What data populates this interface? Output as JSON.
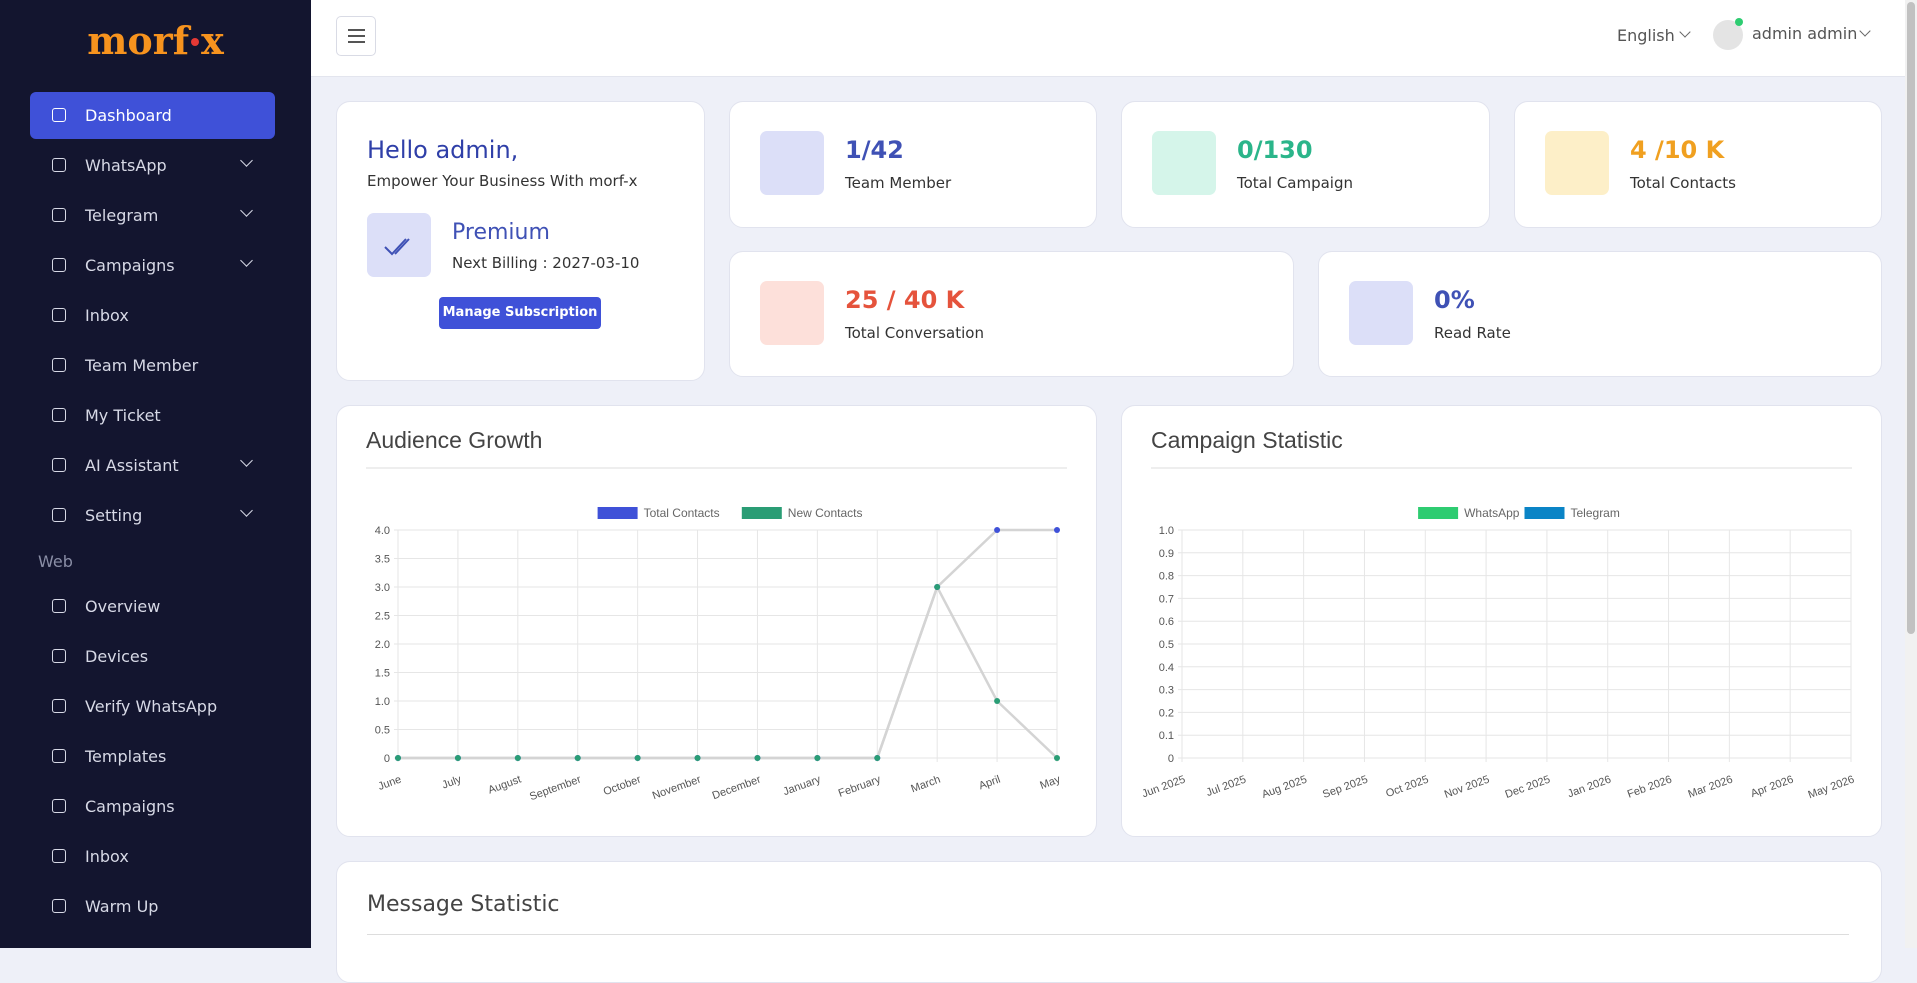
{
  "sidebar": {
    "logo": [
      "morf",
      "x"
    ],
    "menu": [
      {
        "label": "Dashboard",
        "active": true
      },
      {
        "label": "WhatsApp",
        "submenu": true
      },
      {
        "label": "Telegram",
        "submenu": true
      },
      {
        "label": "Campaigns",
        "submenu": true
      },
      {
        "label": "Inbox"
      },
      {
        "label": "Team Member"
      },
      {
        "label": "My Ticket"
      },
      {
        "label": "AI Assistant",
        "submenu": true
      },
      {
        "label": "Setting",
        "submenu": true
      }
    ],
    "web_section": "Web",
    "web_menu": [
      {
        "label": "Overview"
      },
      {
        "label": "Devices"
      },
      {
        "label": "Verify WhatsApp"
      },
      {
        "label": "Templates"
      },
      {
        "label": "Campaigns"
      },
      {
        "label": "Inbox"
      },
      {
        "label": "Warm Up"
      }
    ]
  },
  "header": {
    "language": "English",
    "user": "admin admin"
  },
  "welcome": {
    "greeting": "Hello admin,",
    "tagline": "Empower Your Business With morf-x",
    "plan": "Premium",
    "billing": "Next Billing : 2027-03-10",
    "button": "Manage Subscription"
  },
  "stats": [
    {
      "value": "1/42",
      "label": "Team Member",
      "color": "#3f51b5",
      "bg": "#dcdff8"
    },
    {
      "value": "0/130",
      "label": "Total Campaign",
      "color": "#2bb58a",
      "bg": "#d5f5ea"
    },
    {
      "value": "4 /10 K",
      "label": "Total Contacts",
      "color": "#f0a020",
      "bg": "#fdefc8"
    },
    {
      "value": "25 / 40 K",
      "label": "Total Conversation",
      "color": "#e5533c",
      "bg": "#fde0da"
    },
    {
      "value": "0%",
      "label": "Read Rate",
      "color": "#3f51b5",
      "bg": "#dcdff8"
    }
  ],
  "chart_data": [
    {
      "type": "line",
      "title": "Audience Growth",
      "categories": [
        "June",
        "July",
        "August",
        "September",
        "October",
        "November",
        "December",
        "January",
        "February",
        "March",
        "April",
        "May"
      ],
      "series": [
        {
          "name": "Total Contacts",
          "color": "#3f51d8",
          "values": [
            0,
            0,
            0,
            0,
            0,
            0,
            0,
            0,
            0,
            3,
            4,
            4
          ]
        },
        {
          "name": "New Contacts",
          "color": "#2a9d75",
          "values": [
            0,
            0,
            0,
            0,
            0,
            0,
            0,
            0,
            0,
            3,
            1,
            0
          ]
        }
      ],
      "line_color": "#d4d4d4",
      "ylim": [
        0,
        4
      ],
      "yticks": [
        0,
        0.5,
        {
          "value": 1,
          "label": "1.0"
        },
        1.5,
        {
          "value": 2,
          "label": "2.0"
        },
        2.5,
        {
          "value": 3,
          "label": "3.0"
        },
        3.5,
        {
          "value": 4,
          "label": "4.0"
        }
      ],
      "grid": true,
      "legend": "top"
    },
    {
      "type": "line",
      "title": "Campaign Statistic",
      "categories": [
        "Jun 2025",
        "Jul 2025",
        "Aug 2025",
        "Sep 2025",
        "Oct 2025",
        "Nov 2025",
        "Dec 2025",
        "Jan 2026",
        "Feb 2026",
        "Mar 2026",
        "Apr 2026",
        "May 2026"
      ],
      "series": [
        {
          "name": "WhatsApp",
          "color": "#2ecc71",
          "values": [
            null,
            null,
            null,
            null,
            null,
            null,
            null,
            null,
            null,
            null,
            null,
            null
          ]
        },
        {
          "name": "Telegram",
          "color": "#0a84c6",
          "values": [
            null,
            null,
            null,
            null,
            null,
            null,
            null,
            null,
            null,
            null,
            null,
            null
          ]
        }
      ],
      "line_color": "#d4d4d4",
      "ylim": [
        0,
        1
      ],
      "yticks": [
        0,
        0.1,
        0.2,
        0.3,
        0.4,
        0.5,
        0.6,
        0.7,
        0.8,
        0.9,
        {
          "value": 1,
          "label": "1.0"
        }
      ],
      "grid": true,
      "legend": "top"
    }
  ],
  "message_statistic": {
    "title": "Message Statistic"
  }
}
